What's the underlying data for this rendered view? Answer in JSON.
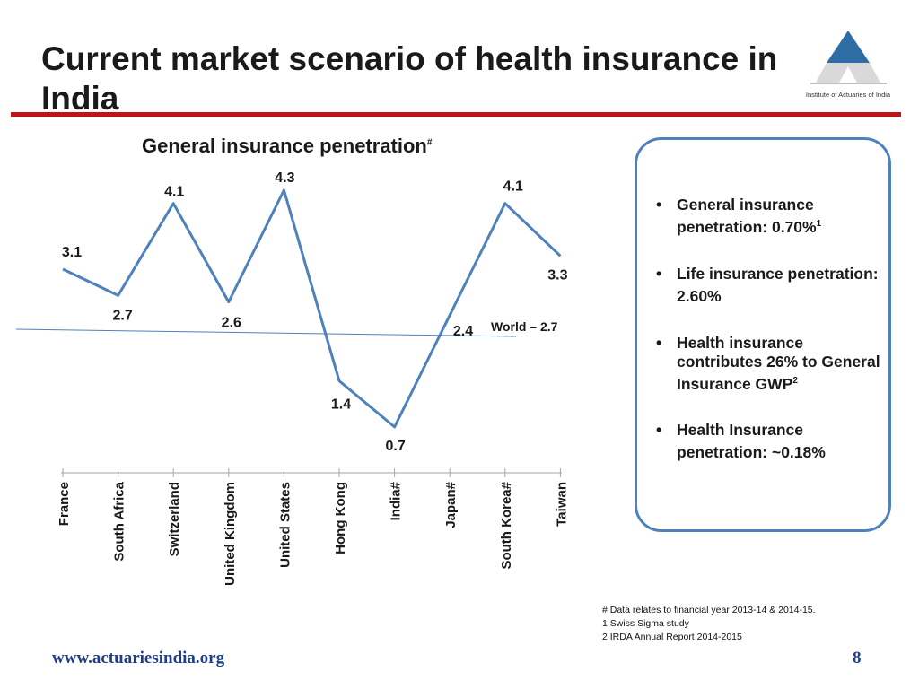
{
  "slide": {
    "title": "Current market scenario of health insurance in India",
    "logo_caption": "Institute of Actuaries of India",
    "footer_url": "www.actuariesindia.org",
    "page_number": "8"
  },
  "chart_data": {
    "type": "line",
    "title": "General insurance penetration",
    "title_superscript": "#",
    "categories": [
      "France",
      "South Africa",
      "Switzerland",
      "United Kingdom",
      "United States",
      "Hong Kong",
      "India#",
      "Japan#",
      "South Korea#",
      "Taiwan"
    ],
    "series": [
      {
        "values": [
          3.1,
          2.7,
          4.1,
          2.6,
          4.3,
          1.4,
          0.7,
          2.4,
          4.1,
          3.3
        ]
      }
    ],
    "data_labels": [
      "3.1",
      "2.7",
      "4.1",
      "2.6",
      "4.3",
      "1.4",
      "0.7",
      "2.4",
      "4.1",
      "3.3"
    ],
    "reference_line": {
      "label": "World – 2.7",
      "value": 2.7
    },
    "ylim": [
      0,
      4.3
    ],
    "grid": false,
    "series_color": "#4f81bd"
  },
  "info_box": {
    "bullets": [
      {
        "text": "General insurance penetration: 0.70%",
        "sup": "1"
      },
      {
        "text": "Life insurance penetration: 2.60%",
        "sup": ""
      },
      {
        "text": "Health insurance contributes 26% to General Insurance GWP",
        "sup": "2"
      },
      {
        "text": "Health Insurance penetration: ~0.18%",
        "sup": ""
      }
    ]
  },
  "footnotes": [
    "# Data relates to financial year 2013-14 & 2014-15.",
    "1 Swiss Sigma study",
    "2 IRDA Annual Report 2014-2015"
  ],
  "colors": {
    "accent_red": "#c0141b",
    "box_border": "#4f81bd",
    "logo_blue": "#2e6da4",
    "footer_blue": "#1f3d8a"
  }
}
